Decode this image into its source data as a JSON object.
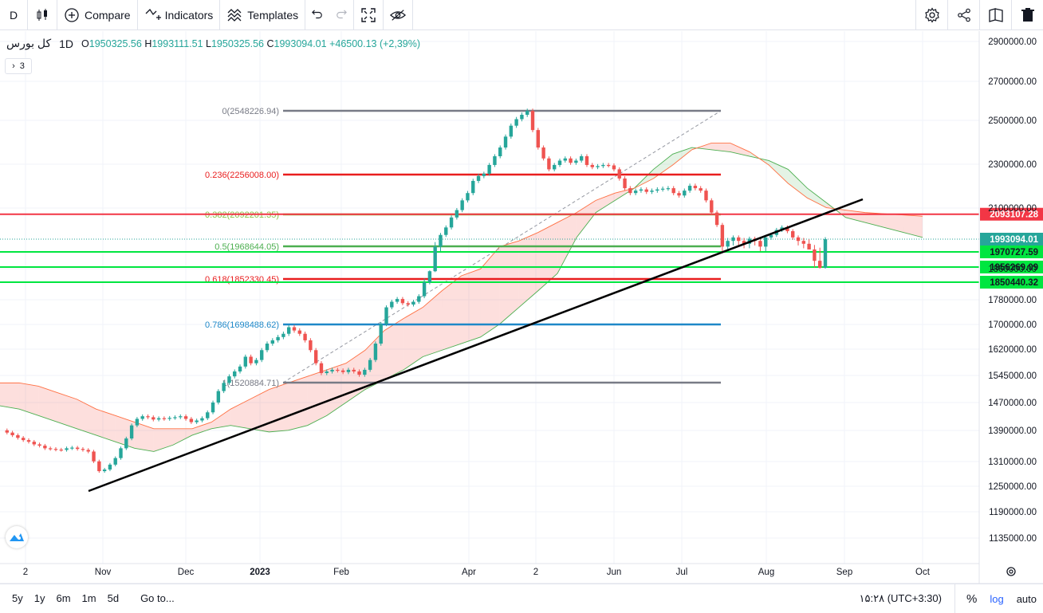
{
  "toolbar": {
    "symbol_short": "D",
    "compare_label": "Compare",
    "indicators_label": "Indicators",
    "templates_label": "Templates"
  },
  "legend": {
    "symbol": "کل بورس",
    "interval": "1D",
    "open": "1950325.56",
    "high": "1993111.51",
    "low": "1950325.56",
    "close": "1993094.01",
    "change": "+46500.13 (+2,39%)",
    "collapsed_count": "3"
  },
  "bottom": {
    "ranges": [
      "5y",
      "1y",
      "6m",
      "1m",
      "5d"
    ],
    "goto_label": "Go to...",
    "time": "۱۵:۲۸ (UTC+3:30)",
    "percent": "%",
    "log": "log",
    "auto": "auto"
  },
  "colors": {
    "up": "#26a69a",
    "down": "#ef5350",
    "accent": "#2962ff"
  },
  "chart_data": {
    "type": "candlestick",
    "x_ticks": [
      "2",
      "Nov",
      "Dec",
      "2023",
      "Feb",
      "Apr",
      "2",
      "Jun",
      "Jul",
      "Aug",
      "Sep",
      "Oct"
    ],
    "y_ticks": [
      2900000,
      2700000,
      2500000,
      2300000,
      2100000,
      1860000,
      1780000,
      1700000,
      1620000,
      1545000,
      1470000,
      1390000,
      1310000,
      1250000,
      1190000,
      1135000
    ],
    "y_tick_labels": [
      "2900000.00",
      "2700000.00",
      "2500000.00",
      "2300000.00",
      "2100000.00",
      "1860000.00",
      "1780000.00",
      "1700000.00",
      "1620000.00",
      "1545000.00",
      "1470000.00",
      "1390000.00",
      "1310000.00",
      "1250000.00",
      "1190000.00",
      "1135000.00"
    ],
    "fib_levels": [
      {
        "label": "0(2548226.94)",
        "value": 2548226.94,
        "color": "#787b86"
      },
      {
        "label": "0.236(2256008.00)",
        "value": 2256008.0,
        "color": "#e91e1e"
      },
      {
        "label": "0.382(2092201.35)",
        "value": 2092201.35,
        "color": "#8bc34a"
      },
      {
        "label": "0.5(1968644.05)",
        "value": 1968644.05,
        "color": "#4caf50"
      },
      {
        "label": "0.618(1852330.45)",
        "value": 1852330.45,
        "color": "#e91e1e"
      },
      {
        "label": "0.786(1698488.62)",
        "value": 1698488.62,
        "color": "#1e88c8"
      },
      {
        "label": "1(1520884.71)",
        "value": 1520884.71,
        "color": "#787b86"
      }
    ],
    "horizontal_lines": [
      {
        "value": 2093107.28,
        "label": "2093107.28",
        "color": "#f23645"
      },
      {
        "value": 1970727.59,
        "label": "1970727.59",
        "color": "#00e640"
      },
      {
        "value": 1956269.09,
        "label": "1956269.09",
        "color": "#00e640"
      },
      {
        "value": 1850440.32,
        "label": "1850440.32",
        "color": "#00e640"
      }
    ],
    "last_price": {
      "value": 1993094.01,
      "label": "1993094.01",
      "color": "#26a69a"
    },
    "series": [
      {
        "name": "price",
        "values": [
          1375000,
          1368000,
          1360000,
          1352000,
          1345000,
          1340000,
          1332000,
          1328000,
          1320000,
          1318000,
          1316000,
          1315000,
          1320000,
          1322000,
          1318000,
          1315000,
          1310000,
          1280000,
          1250000,
          1255000,
          1270000,
          1290000,
          1320000,
          1350000,
          1390000,
          1410000,
          1418000,
          1415000,
          1408000,
          1412000,
          1410000,
          1413000,
          1415000,
          1418000,
          1410000,
          1400000,
          1405000,
          1412000,
          1430000,
          1460000,
          1495000,
          1520000,
          1540000,
          1555000,
          1570000,
          1600000,
          1580000,
          1590000,
          1620000,
          1640000,
          1650000,
          1660000,
          1670000,
          1690000,
          1680000,
          1670000,
          1650000,
          1620000,
          1580000,
          1550000,
          1555000,
          1560000,
          1558000,
          1553000,
          1560000,
          1555000,
          1545000,
          1560000,
          1590000,
          1640000,
          1700000,
          1760000,
          1780000,
          1790000,
          1775000,
          1770000,
          1780000,
          1800000,
          1850000,
          1920000,
          1980000,
          2010000,
          2040000,
          2080000,
          2110000,
          2150000,
          2180000,
          2230000,
          2250000,
          2260000,
          2300000,
          2340000,
          2380000,
          2430000,
          2480000,
          2510000,
          2530000,
          2548000,
          2460000,
          2380000,
          2330000,
          2280000,
          2300000,
          2320000,
          2330000,
          2310000,
          2320000,
          2340000,
          2300000,
          2290000,
          2295000,
          2300000,
          2298000,
          2280000,
          2240000,
          2200000,
          2180000,
          2190000,
          2195000,
          2185000,
          2190000,
          2195000,
          2198000,
          2200000,
          2180000,
          2170000,
          2190000,
          2210000,
          2200000,
          2190000,
          2150000,
          2100000,
          2050000,
          1980000,
          1990000,
          2000000,
          1990000,
          1985000,
          1995000,
          1990000,
          1980000,
          2000000,
          2010000,
          2030000,
          2040000,
          2025000,
          2000000,
          1990000,
          1985000,
          1975000,
          1960000,
          1950000,
          1993000
        ]
      },
      {
        "name": "ichimoku_a",
        "values": [
          1450000,
          1440000,
          1420000,
          1400000,
          1380000,
          1360000,
          1340000,
          1320000,
          1310000,
          1330000,
          1360000,
          1380000,
          1390000,
          1380000,
          1370000,
          1375000,
          1390000,
          1420000,
          1460000,
          1500000,
          1530000,
          1560000,
          1600000,
          1620000,
          1640000,
          1660000,
          1700000,
          1760000,
          1820000,
          1900000,
          2000000,
          2100000,
          2150000,
          2200000,
          2280000,
          2350000,
          2380000,
          2370000,
          2360000,
          2340000,
          2320000,
          2280000,
          2200000,
          2140000,
          2080000,
          2060000,
          2040000,
          2020000,
          2000000
        ]
      },
      {
        "name": "ichimoku_b",
        "values": [
          1520000,
          1520000,
          1510000,
          1490000,
          1470000,
          1440000,
          1420000,
          1400000,
          1380000,
          1380000,
          1380000,
          1400000,
          1440000,
          1470000,
          1500000,
          1520000,
          1540000,
          1560000,
          1580000,
          1620000,
          1680000,
          1720000,
          1760000,
          1820000,
          1880000,
          1940000,
          1980000,
          1990000,
          2020000,
          2060000,
          2100000,
          2150000,
          2180000,
          2200000,
          2240000,
          2300000,
          2370000,
          2400000,
          2400000,
          2360000,
          2300000,
          2220000,
          2160000,
          2120000,
          2110000,
          2100000,
          2095000,
          2090000,
          2085000
        ]
      }
    ],
    "trendline": {
      "from": {
        "x": "Oct-27",
        "y": 1250000
      },
      "to": {
        "x": "Sep-10",
        "y": 2120000
      }
    }
  }
}
